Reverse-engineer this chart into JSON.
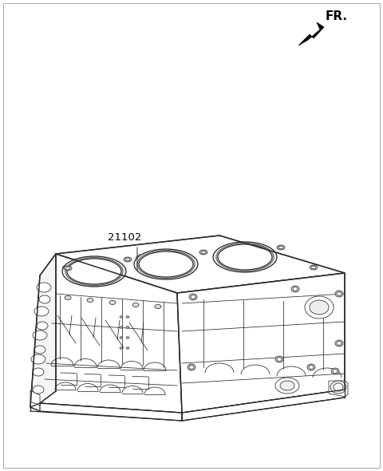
{
  "bg_color": "#ffffff",
  "line_color": "#2a2a2a",
  "part_number": "21102",
  "fr_label": "FR.",
  "fig_width": 4.8,
  "fig_height": 5.9,
  "dpi": 100
}
